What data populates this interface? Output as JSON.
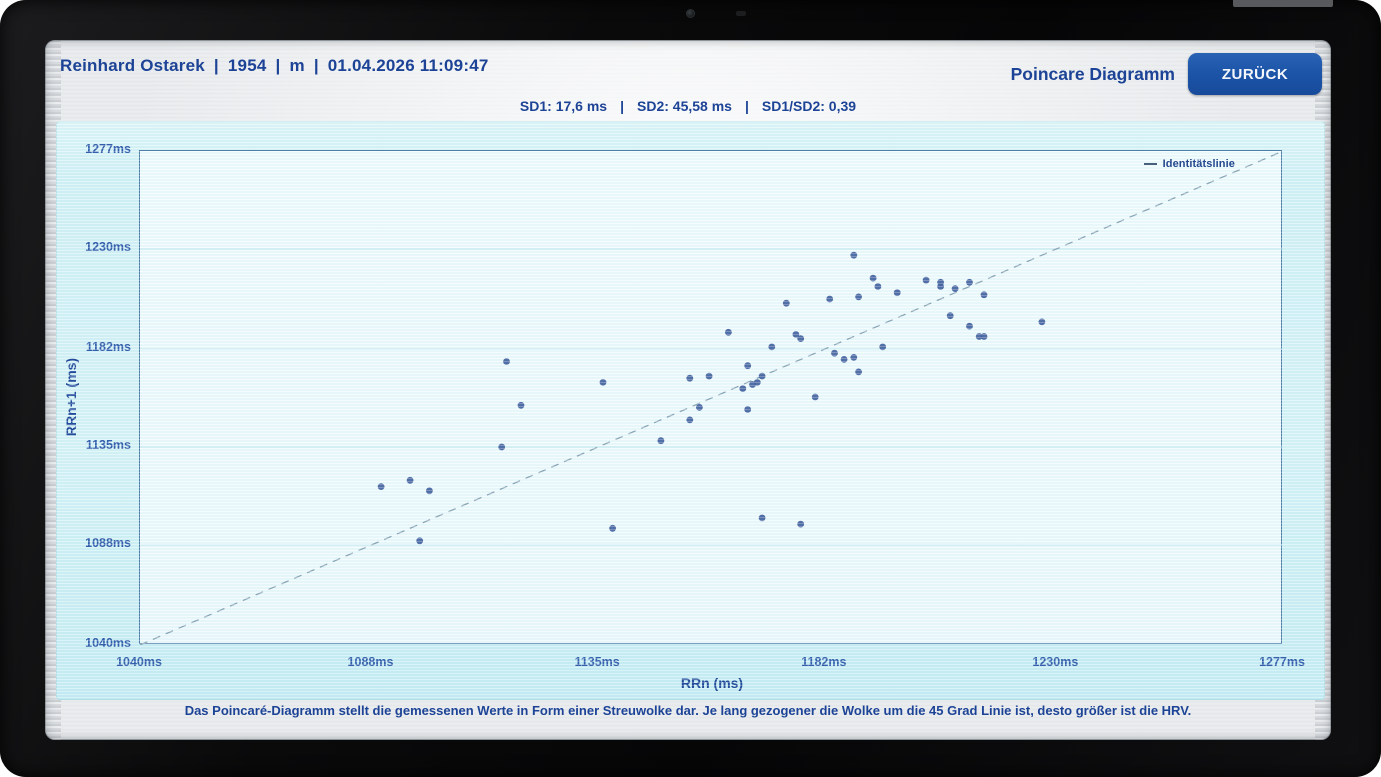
{
  "header": {
    "patient_segments": [
      "Reinhard Ostarek",
      "1954",
      "m",
      "01.04.2026  11:09:47"
    ],
    "separator": "|",
    "view_title": "Poincare Diagramm",
    "back_label": "ZURÜCK"
  },
  "stats": {
    "segments": [
      "SD1: 17,6 ms",
      "SD2: 45,58 ms",
      "SD1/SD2: 0,39"
    ],
    "separator": "|"
  },
  "chart_data": {
    "type": "scatter",
    "xlabel": "RRn (ms)",
    "ylabel": "RRn+1 (ms)",
    "xlim": [
      1040,
      1277
    ],
    "ylim": [
      1040,
      1277
    ],
    "ticks": [
      1040,
      1088,
      1135,
      1182,
      1230,
      1277
    ],
    "tick_unit": "ms",
    "grid": "horizontal",
    "legend": {
      "label": "Identitätslinie",
      "position": "top-right"
    },
    "identity_line": {
      "style": "dashed",
      "from": [
        1040,
        1040
      ],
      "to": [
        1277,
        1277
      ]
    },
    "points": [
      [
        1188,
        1227
      ],
      [
        1192,
        1216
      ],
      [
        1193,
        1212
      ],
      [
        1203,
        1215
      ],
      [
        1206,
        1214
      ],
      [
        1206,
        1212
      ],
      [
        1209,
        1211
      ],
      [
        1212,
        1214
      ],
      [
        1215,
        1208
      ],
      [
        1197,
        1209
      ],
      [
        1183,
        1206
      ],
      [
        1189,
        1207
      ],
      [
        1174,
        1204
      ],
      [
        1208,
        1198
      ],
      [
        1212,
        1193
      ],
      [
        1214,
        1188
      ],
      [
        1215,
        1188
      ],
      [
        1227,
        1195
      ],
      [
        1162,
        1190
      ],
      [
        1176,
        1189
      ],
      [
        1177,
        1187
      ],
      [
        1194,
        1183
      ],
      [
        1184,
        1180
      ],
      [
        1186,
        1177
      ],
      [
        1188,
        1178
      ],
      [
        1189,
        1171
      ],
      [
        1171,
        1183
      ],
      [
        1166,
        1174
      ],
      [
        1169,
        1169
      ],
      [
        1167,
        1165
      ],
      [
        1168,
        1166
      ],
      [
        1165,
        1163
      ],
      [
        1154,
        1168
      ],
      [
        1158,
        1169
      ],
      [
        1156,
        1154
      ],
      [
        1154,
        1148
      ],
      [
        1166,
        1153
      ],
      [
        1180,
        1159
      ],
      [
        1116,
        1176
      ],
      [
        1136,
        1166
      ],
      [
        1119,
        1155
      ],
      [
        1115,
        1135
      ],
      [
        1148,
        1138
      ],
      [
        1090,
        1116
      ],
      [
        1096,
        1119
      ],
      [
        1100,
        1114
      ],
      [
        1098,
        1090
      ],
      [
        1138,
        1096
      ],
      [
        1169,
        1101
      ],
      [
        1177,
        1098
      ]
    ]
  },
  "footer": {
    "note": "Das Poincaré-Diagramm stellt die gemessenen Werte in Form einer Streuwolke dar. Je lang gezogener die Wolke um die 45 Grad Linie ist, desto größer ist die HRV."
  },
  "colors": {
    "accent_text": "#1c4396",
    "button": "#1d55a9",
    "dot": "#3f5c9d",
    "panel_cyan": "#d6f3f8",
    "plot_bg": "#eefafd",
    "plot_border": "#4d7aa7",
    "identity_line": "#8ba4b6"
  }
}
